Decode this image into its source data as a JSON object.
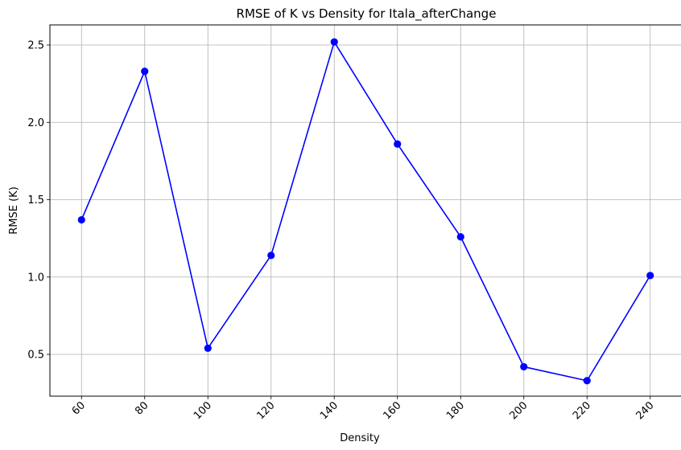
{
  "chart_data": {
    "type": "line",
    "title": "RMSE of K vs Density for Itala_afterChange",
    "xlabel": "Density",
    "ylabel": "RMSE (K)",
    "xlim": [
      50,
      250
    ],
    "ylim": [
      0.23,
      2.63
    ],
    "x_ticks": [
      "60",
      "80",
      "100",
      "120",
      "140",
      "160",
      "180",
      "200",
      "220",
      "240"
    ],
    "y_ticks": [
      "0.5",
      "1.0",
      "1.5",
      "2.0",
      "2.5"
    ],
    "grid": true,
    "x_tick_rotation_deg": 45,
    "series": [
      {
        "color": "#0000ff",
        "marker": "circle",
        "x": [
          60,
          80,
          100,
          120,
          140,
          160,
          180,
          200,
          220,
          240
        ],
        "y": [
          1.37,
          2.33,
          0.54,
          1.14,
          2.52,
          1.86,
          1.26,
          0.42,
          0.33,
          1.01
        ]
      }
    ]
  }
}
